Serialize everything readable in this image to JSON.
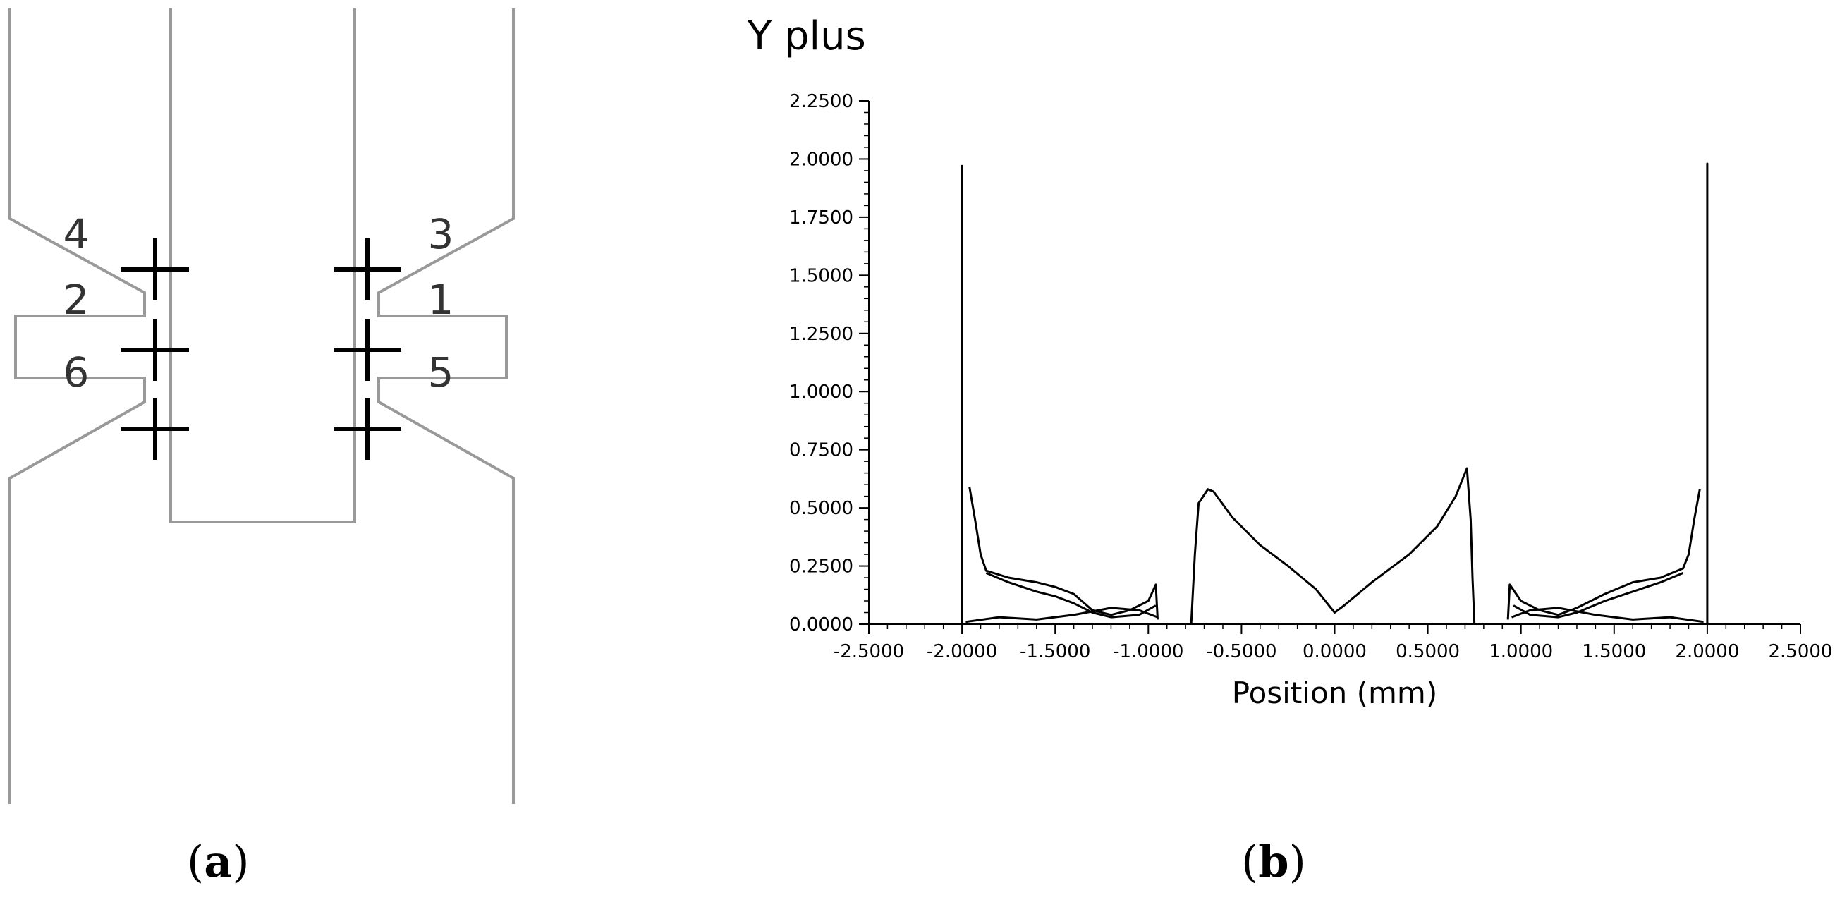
{
  "panel_a": {
    "caption_letter": "a",
    "location_labels": [
      "1",
      "2",
      "3",
      "4",
      "5",
      "6"
    ]
  },
  "panel_b": {
    "caption_letter": "b"
  },
  "chart_data": {
    "type": "line",
    "title": "Y plus",
    "xlabel": "Position (mm)",
    "ylabel": "",
    "xlim": [
      -2.5,
      2.5
    ],
    "ylim": [
      0,
      2.25
    ],
    "xticks": [
      "-2.5000",
      "-2.0000",
      "-1.5000",
      "-1.0000",
      "-0.5000",
      "0.0000",
      "0.5000",
      "1.0000",
      "1.5000",
      "2.0000",
      "2.5000"
    ],
    "yticks": [
      "0.0000",
      "0.2500",
      "0.5000",
      "0.7500",
      "1.0000",
      "1.2500",
      "1.5000",
      "1.7500",
      "2.0000",
      "2.2500"
    ],
    "grid": false,
    "colors": {
      "line": "#000000",
      "geometry": "#999999"
    },
    "series": [
      {
        "points": [
          [
            -2.0,
            0.0
          ],
          [
            -2.0,
            1.97
          ],
          [
            -2.0,
            0.0
          ]
        ]
      },
      {
        "points": [
          [
            -1.96,
            0.59
          ],
          [
            -1.93,
            0.45
          ],
          [
            -1.9,
            0.3
          ],
          [
            -1.87,
            0.23
          ],
          [
            -1.75,
            0.2
          ],
          [
            -1.6,
            0.18
          ],
          [
            -1.5,
            0.16
          ],
          [
            -1.4,
            0.13
          ],
          [
            -1.3,
            0.06
          ],
          [
            -1.2,
            0.04
          ],
          [
            -1.1,
            0.06
          ],
          [
            -1.0,
            0.1
          ],
          [
            -0.96,
            0.17
          ],
          [
            -0.95,
            0.02
          ]
        ]
      },
      {
        "points": [
          [
            -1.87,
            0.22
          ],
          [
            -1.75,
            0.18
          ],
          [
            -1.6,
            0.14
          ],
          [
            -1.5,
            0.12
          ],
          [
            -1.4,
            0.09
          ],
          [
            -1.3,
            0.05
          ],
          [
            -1.2,
            0.03
          ],
          [
            -1.05,
            0.04
          ],
          [
            -0.96,
            0.08
          ]
        ]
      },
      {
        "points": [
          [
            -1.98,
            0.01
          ],
          [
            -1.8,
            0.03
          ],
          [
            -1.6,
            0.02
          ],
          [
            -1.4,
            0.04
          ],
          [
            -1.2,
            0.07
          ],
          [
            -1.05,
            0.06
          ],
          [
            -0.95,
            0.03
          ]
        ]
      },
      {
        "points": [
          [
            -0.77,
            0.0
          ],
          [
            -0.75,
            0.3
          ],
          [
            -0.73,
            0.52
          ],
          [
            -0.68,
            0.58
          ],
          [
            -0.65,
            0.57
          ],
          [
            -0.55,
            0.46
          ],
          [
            -0.4,
            0.34
          ],
          [
            -0.25,
            0.25
          ],
          [
            -0.1,
            0.15
          ],
          [
            -0.02,
            0.07
          ],
          [
            0.0,
            0.05
          ],
          [
            0.05,
            0.08
          ],
          [
            0.2,
            0.18
          ],
          [
            0.4,
            0.3
          ],
          [
            0.55,
            0.42
          ],
          [
            0.65,
            0.55
          ],
          [
            0.71,
            0.67
          ],
          [
            0.73,
            0.45
          ],
          [
            0.74,
            0.2
          ],
          [
            0.75,
            0.0
          ]
        ]
      },
      {
        "points": [
          [
            0.93,
            0.02
          ],
          [
            0.94,
            0.17
          ],
          [
            1.0,
            0.1
          ],
          [
            1.1,
            0.06
          ],
          [
            1.2,
            0.04
          ],
          [
            1.3,
            0.07
          ],
          [
            1.45,
            0.13
          ],
          [
            1.6,
            0.18
          ],
          [
            1.75,
            0.2
          ],
          [
            1.87,
            0.24
          ],
          [
            1.9,
            0.3
          ],
          [
            1.93,
            0.45
          ],
          [
            1.96,
            0.58
          ]
        ]
      },
      {
        "points": [
          [
            0.96,
            0.08
          ],
          [
            1.05,
            0.04
          ],
          [
            1.2,
            0.03
          ],
          [
            1.3,
            0.05
          ],
          [
            1.45,
            0.1
          ],
          [
            1.6,
            0.14
          ],
          [
            1.75,
            0.18
          ],
          [
            1.87,
            0.22
          ]
        ]
      },
      {
        "points": [
          [
            0.95,
            0.03
          ],
          [
            1.05,
            0.06
          ],
          [
            1.2,
            0.07
          ],
          [
            1.4,
            0.04
          ],
          [
            1.6,
            0.02
          ],
          [
            1.8,
            0.03
          ],
          [
            1.98,
            0.01
          ]
        ]
      },
      {
        "points": [
          [
            2.0,
            0.0
          ],
          [
            2.0,
            1.98
          ],
          [
            2.0,
            0.0
          ]
        ]
      }
    ]
  }
}
